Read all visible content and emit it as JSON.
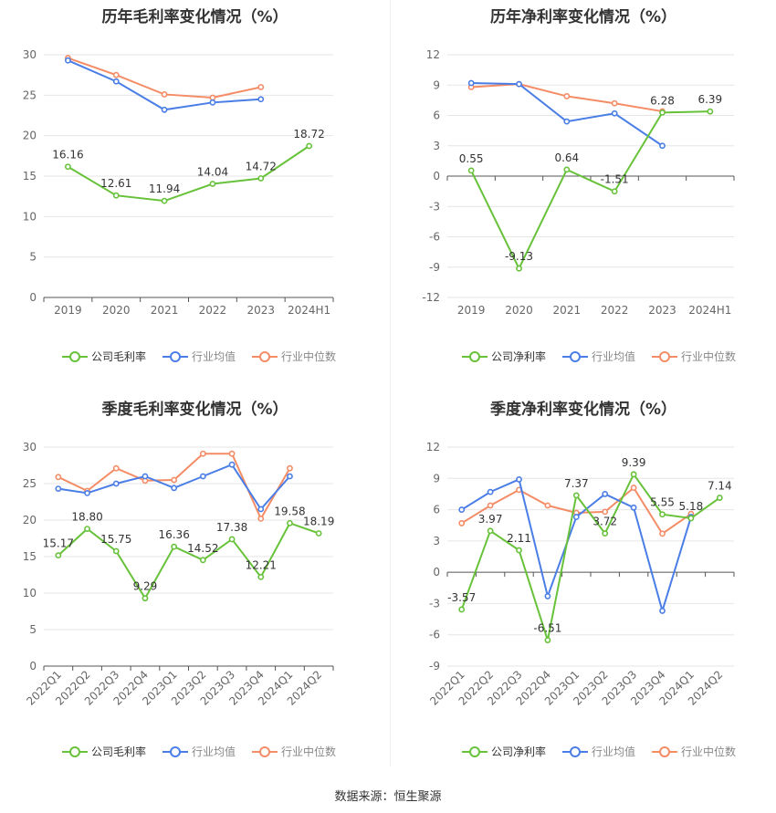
{
  "source": "数据来源：恒生聚源",
  "colors": {
    "company": "#67c23a",
    "avg": "#4a7ee6",
    "median": "#f48c66"
  },
  "charts": [
    {
      "title": "历年毛利率变化情况（%）",
      "legend": [
        "公司毛利率",
        "行业均值",
        "行业中位数"
      ],
      "chart_data": {
        "type": "line",
        "categories": [
          "2019",
          "2020",
          "2021",
          "2022",
          "2023",
          "2024H1"
        ],
        "ylim": [
          0,
          30
        ],
        "yticks": [
          0,
          5,
          10,
          15,
          20,
          25,
          30
        ],
        "series": [
          {
            "name": "公司毛利率",
            "values": [
              16.16,
              12.61,
              11.94,
              14.04,
              14.72,
              18.72
            ],
            "labels": [
              "16.16",
              "12.61",
              "11.94",
              "14.04",
              "14.72",
              "18.72"
            ]
          },
          {
            "name": "行业均值",
            "values": [
              29.3,
              26.7,
              23.2,
              24.1,
              24.5,
              null
            ]
          },
          {
            "name": "行业中位数",
            "values": [
              29.6,
              27.5,
              25.1,
              24.7,
              26.0,
              null
            ]
          }
        ]
      }
    },
    {
      "title": "历年净利率变化情况（%）",
      "legend": [
        "公司净利率",
        "行业均值",
        "行业中位数"
      ],
      "chart_data": {
        "type": "line",
        "categories": [
          "2019",
          "2020",
          "2021",
          "2022",
          "2023",
          "2024H1"
        ],
        "ylim": [
          -12,
          12
        ],
        "yticks": [
          -12,
          -9,
          -6,
          -3,
          0,
          3,
          6,
          9,
          12
        ],
        "series": [
          {
            "name": "公司净利率",
            "values": [
              0.55,
              -9.13,
              0.64,
              -1.51,
              6.28,
              6.39
            ],
            "labels": [
              "0.55",
              "-9.13",
              "0.64",
              "-1.51",
              "6.28",
              "6.39"
            ]
          },
          {
            "name": "行业均值",
            "values": [
              9.2,
              9.1,
              5.4,
              6.2,
              3.0,
              null
            ]
          },
          {
            "name": "行业中位数",
            "values": [
              8.8,
              9.1,
              7.9,
              7.2,
              6.4,
              null
            ]
          }
        ]
      }
    },
    {
      "title": "季度毛利率变化情况（%）",
      "legend": [
        "公司毛利率",
        "行业均值",
        "行业中位数"
      ],
      "chart_data": {
        "type": "line",
        "categories": [
          "2022Q1",
          "2022Q2",
          "2022Q3",
          "2022Q4",
          "2023Q1",
          "2023Q2",
          "2023Q3",
          "2023Q4",
          "2024Q1",
          "2024Q2"
        ],
        "ylim": [
          0,
          30
        ],
        "yticks": [
          0,
          5,
          10,
          15,
          20,
          25,
          30
        ],
        "series": [
          {
            "name": "公司毛利率",
            "values": [
              15.17,
              18.8,
              15.75,
              9.29,
              16.36,
              14.52,
              17.38,
              12.21,
              19.58,
              18.19
            ],
            "labels": [
              "15.17",
              "18.80",
              "15.75",
              "9.29",
              "16.36",
              "14.52",
              "17.38",
              "12.21",
              "19.58",
              "18.19"
            ]
          },
          {
            "name": "行业均值",
            "values": [
              24.3,
              23.7,
              25.0,
              26.0,
              24.4,
              26.0,
              27.6,
              21.5,
              26.0,
              null
            ]
          },
          {
            "name": "行业中位数",
            "values": [
              25.9,
              24.0,
              27.1,
              25.4,
              25.5,
              29.1,
              29.1,
              20.2,
              27.1,
              null
            ]
          }
        ]
      }
    },
    {
      "title": "季度净利率变化情况（%）",
      "legend": [
        "公司净利率",
        "行业均值",
        "行业中位数"
      ],
      "chart_data": {
        "type": "line",
        "categories": [
          "2022Q1",
          "2022Q2",
          "2022Q3",
          "2022Q4",
          "2023Q1",
          "2023Q2",
          "2023Q3",
          "2023Q4",
          "2024Q1",
          "2024Q2"
        ],
        "ylim": [
          -9,
          12
        ],
        "yticks": [
          -9,
          -6,
          -3,
          0,
          3,
          6,
          9,
          12
        ],
        "series": [
          {
            "name": "公司净利率",
            "values": [
              -3.57,
              3.97,
              2.11,
              -6.51,
              7.37,
              3.72,
              9.39,
              5.55,
              5.18,
              7.14
            ],
            "labels": [
              "-3.57",
              "3.97",
              "2.11",
              "-6.51",
              "7.37",
              "3.72",
              "9.39",
              "5.55",
              "5.18",
              "7.14"
            ]
          },
          {
            "name": "行业均值",
            "values": [
              6.0,
              7.7,
              8.9,
              -2.3,
              5.3,
              7.5,
              6.2,
              -3.7,
              5.3,
              null
            ]
          },
          {
            "name": "行业中位数",
            "values": [
              4.7,
              6.4,
              7.9,
              6.4,
              5.7,
              5.8,
              8.1,
              3.7,
              5.6,
              null
            ]
          }
        ]
      }
    }
  ]
}
